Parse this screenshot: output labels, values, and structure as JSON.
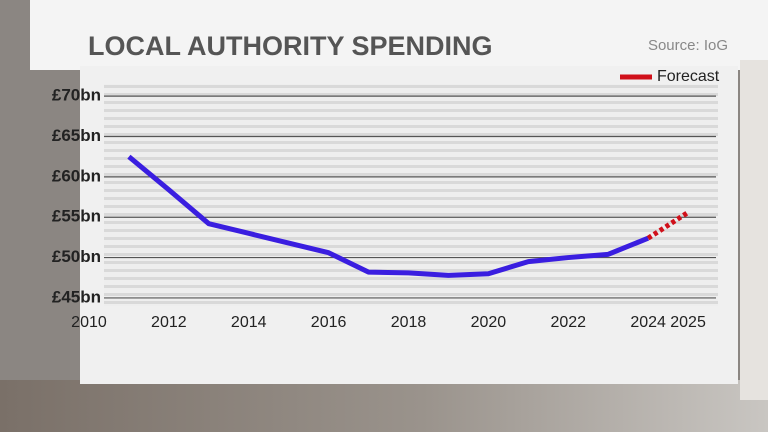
{
  "chart_data": {
    "type": "line",
    "title": "LOCAL AUTHORITY SPENDING",
    "source": "Source: IoG",
    "x": [
      2011,
      2012,
      2013,
      2014,
      2015,
      2016,
      2017,
      2018,
      2019,
      2020,
      2021,
      2022,
      2023,
      2024,
      2025
    ],
    "series": [
      {
        "color": "#3a1ee0",
        "style": "solid",
        "values": [
          62.5,
          58.4,
          54.2,
          53.0,
          51.8,
          50.6,
          48.2,
          48.1,
          47.8,
          48.0,
          49.5,
          50.0,
          50.4,
          52.4,
          null
        ]
      },
      {
        "name": "Forecast",
        "color": "#d0101a",
        "style": "dotted",
        "values": [
          null,
          null,
          null,
          null,
          null,
          null,
          null,
          null,
          null,
          null,
          null,
          null,
          null,
          52.4,
          55.6
        ]
      }
    ],
    "xlim": [
      2009.5,
      2026
    ],
    "xticks": [
      2010,
      2012,
      2014,
      2016,
      2018,
      2020,
      2022,
      2024,
      2025
    ],
    "ylim": [
      44,
      72
    ],
    "yticks": [
      {
        "value": 45,
        "label": "£45bn"
      },
      {
        "value": 50,
        "label": "£50bn"
      },
      {
        "value": 55,
        "label": "£55bn"
      },
      {
        "value": 60,
        "label": "£60bn"
      },
      {
        "value": 65,
        "label": "£65bn"
      },
      {
        "value": 70,
        "label": "£70bn"
      }
    ],
    "grid": true,
    "legend": "top-right"
  }
}
